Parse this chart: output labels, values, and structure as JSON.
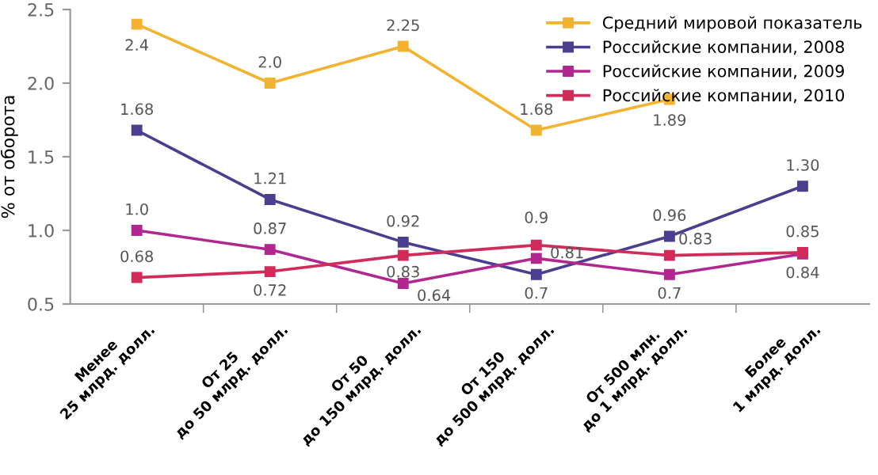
{
  "chart_data": {
    "type": "line",
    "ylabel": "% от оборота",
    "categories": [
      "Менее\n25 млрд. долл.",
      "От 25\nдо 50 млрд. долл.",
      "От 50\nдо 150 млрд. долл.",
      "От 150\nдо 500 млрд. долл.",
      "От 500 млн.\nдо 1 млрд. долл.",
      "Более\n1 млрд. долл."
    ],
    "series": [
      {
        "name": "Средний мировой показатель",
        "color": "#f2b330",
        "values": [
          2.4,
          2.0,
          2.25,
          1.68,
          1.89,
          null
        ],
        "value_labels": [
          "2.4",
          "2.0",
          "2.25",
          "1.68",
          "1.89",
          null
        ]
      },
      {
        "name": "Российские компании, 2008",
        "color": "#4a3f8f",
        "values": [
          1.68,
          1.21,
          0.92,
          0.7,
          0.96,
          1.3
        ],
        "value_labels": [
          "1.68",
          "1.21",
          "0.92",
          "0.7",
          "0.96",
          "1.30"
        ]
      },
      {
        "name": "Российские компании, 2009",
        "color": "#b0288f",
        "values": [
          1.0,
          0.87,
          0.64,
          0.81,
          0.7,
          0.84
        ],
        "value_labels": [
          "1.0",
          "0.87",
          "0.64",
          "0.81",
          "0.7",
          "0.84"
        ]
      },
      {
        "name": "Российские компании, 2010",
        "color": "#d12b5a",
        "values": [
          0.68,
          0.72,
          0.83,
          0.9,
          0.83,
          0.85
        ],
        "value_labels": [
          "0.68",
          "0.72",
          "0.83",
          "0.9",
          "0.83",
          "0.85"
        ]
      }
    ],
    "ylim": [
      0.5,
      2.5
    ],
    "yticks": [
      0.5,
      {
        "value": 1.0,
        "label": "1.0"
      },
      1.5,
      {
        "value": 2.0,
        "label": "2.0"
      },
      2.5
    ],
    "grid": false,
    "legend": "top right",
    "marker": "square",
    "line_style": "solid"
  }
}
